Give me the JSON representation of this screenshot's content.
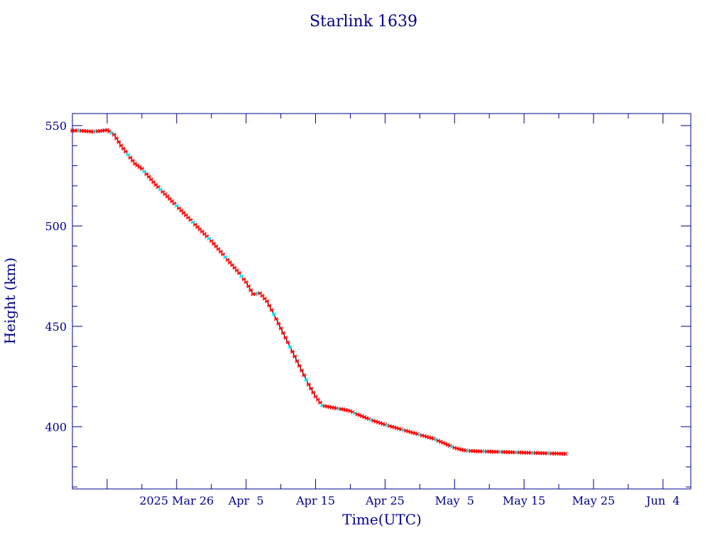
{
  "chart_data": {
    "type": "line",
    "title": "Starlink 1639",
    "xlabel": "Time(UTC)",
    "ylabel": "Height (km)",
    "x_tick_labels": [
      "2025 Mar 26",
      "Apr  5",
      "Apr 15",
      "Apr 25",
      "May  5",
      "May 15",
      "May 25",
      "Jun  4"
    ],
    "x_ticks": [
      "2025-03-26",
      "2025-04-05",
      "2025-04-15",
      "2025-04-25",
      "2025-05-05",
      "2025-05-15",
      "2025-05-25",
      "2025-06-04"
    ],
    "y_ticks": [
      400,
      450,
      500,
      550
    ],
    "xlim": [
      "2025-03-11",
      "2025-06-08"
    ],
    "ylim": [
      369,
      556
    ],
    "grid": false,
    "line_color": "#000000",
    "marker_colors": [
      "#ff0000",
      "#00e5ee"
    ],
    "axis_color": "#00008b",
    "series": [
      {
        "x": [
          "2025-03-11",
          "2025-03-12",
          "2025-03-13",
          "2025-03-14",
          "2025-03-15",
          "2025-03-16",
          "2025-03-17",
          "2025-03-18",
          "2025-03-19",
          "2025-03-20",
          "2025-03-21",
          "2025-03-22",
          "2025-03-23",
          "2025-03-24",
          "2025-03-25",
          "2025-03-26",
          "2025-03-27",
          "2025-03-28",
          "2025-03-29",
          "2025-03-30",
          "2025-03-31",
          "2025-04-01",
          "2025-04-02",
          "2025-04-03",
          "2025-04-04",
          "2025-04-05",
          "2025-04-06",
          "2025-04-07",
          "2025-04-08",
          "2025-04-09",
          "2025-04-10",
          "2025-04-11",
          "2025-04-12",
          "2025-04-13",
          "2025-04-14",
          "2025-04-15",
          "2025-04-16",
          "2025-04-17",
          "2025-04-18",
          "2025-04-19",
          "2025-04-20",
          "2025-04-21",
          "2025-04-22",
          "2025-04-23",
          "2025-04-24",
          "2025-04-25",
          "2025-04-26",
          "2025-04-27",
          "2025-04-28",
          "2025-04-29",
          "2025-04-30",
          "2025-05-01",
          "2025-05-02",
          "2025-05-03",
          "2025-05-04",
          "2025-05-05",
          "2025-05-06",
          "2025-05-07",
          "2025-05-08",
          "2025-05-09",
          "2025-05-10",
          "2025-05-11",
          "2025-05-12",
          "2025-05-13",
          "2025-05-14",
          "2025-05-15",
          "2025-05-16",
          "2025-05-17",
          "2025-05-18",
          "2025-05-19",
          "2025-05-20",
          "2025-05-21"
        ],
        "values": [
          547.5,
          547.5,
          547.2,
          547.0,
          547.3,
          547.8,
          545.5,
          540.0,
          535.5,
          531.0,
          528.5,
          524.5,
          520.5,
          517.0,
          513.5,
          510.0,
          506.5,
          503.0,
          499.5,
          496.0,
          492.5,
          488.5,
          484.5,
          480.5,
          476.5,
          472.0,
          466.0,
          466.5,
          462.5,
          456.0,
          449.0,
          442.0,
          435.0,
          428.0,
          421.0,
          415.0,
          410.5,
          409.8,
          409.2,
          408.6,
          407.8,
          406.2,
          404.8,
          403.4,
          402.2,
          401.0,
          400.0,
          399.0,
          398.0,
          397.0,
          396.0,
          395.0,
          394.0,
          392.5,
          391.0,
          389.5,
          388.5,
          388.0,
          387.8,
          387.7,
          387.6,
          387.5,
          387.4,
          387.3,
          387.2,
          387.1,
          387.0,
          386.9,
          386.8,
          386.7,
          386.6,
          386.5
        ]
      }
    ]
  }
}
